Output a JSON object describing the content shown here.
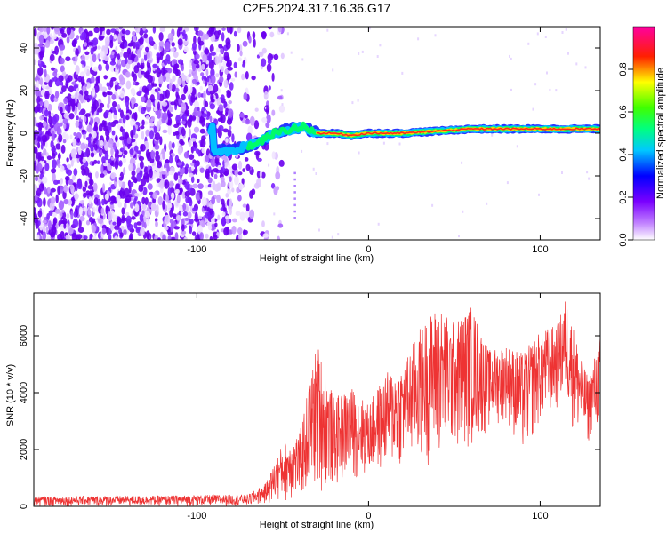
{
  "chart_data": [
    {
      "type": "heatmap",
      "title": "C2E5.2024.317.16.36.G17",
      "xlabel": "Height of straight line (km)",
      "ylabel": "Frequency (Hz)",
      "xlim": [
        -195,
        135
      ],
      "ylim": [
        -50,
        50
      ],
      "xticks": [
        -100,
        0,
        100
      ],
      "yticks": [
        -40,
        -20,
        0,
        20,
        40
      ],
      "colorbar": {
        "label": "Normalized spectral amplitude",
        "range": [
          0,
          1
        ],
        "ticks": [
          0.0,
          0.2,
          0.4,
          0.6,
          0.8
        ],
        "colormap": [
          "#ffffff",
          "#7a00ff",
          "#0000ff",
          "#00ffff",
          "#00ff00",
          "#ffff00",
          "#ff0000",
          "#ff00a0"
        ]
      },
      "features": {
        "noise_region_x": [
          -195,
          -60
        ],
        "signal_line": [
          {
            "x": -90,
            "y": -8
          },
          {
            "x": -80,
            "y": -8
          },
          {
            "x": -65,
            "y": -5
          },
          {
            "x": -55,
            "y": 0
          },
          {
            "x": -45,
            "y": 2
          },
          {
            "x": -38,
            "y": 3
          },
          {
            "x": -30,
            "y": 0
          },
          {
            "x": -20,
            "y": 0
          },
          {
            "x": -10,
            "y": -1
          },
          {
            "x": 0,
            "y": 0
          },
          {
            "x": 20,
            "y": 0
          },
          {
            "x": 40,
            "y": 1
          },
          {
            "x": 60,
            "y": 2
          },
          {
            "x": 80,
            "y": 2
          },
          {
            "x": 100,
            "y": 2
          },
          {
            "x": 120,
            "y": 2
          },
          {
            "x": 135,
            "y": 2
          }
        ],
        "spike_x": -43
      }
    },
    {
      "type": "line",
      "xlabel": "Height of straight line (km)",
      "ylabel": "SNR (10 * v/v)",
      "xlim": [
        -195,
        135
      ],
      "ylim": [
        0,
        7500
      ],
      "xticks": [
        -100,
        0,
        100
      ],
      "yticks": [
        0,
        2000,
        4000,
        6000
      ],
      "color": "#ee3333",
      "envelope": [
        {
          "x": -195,
          "lo": 0,
          "hi": 350
        },
        {
          "x": -120,
          "lo": 0,
          "hi": 380
        },
        {
          "x": -70,
          "lo": 0,
          "hi": 420
        },
        {
          "x": -60,
          "lo": 50,
          "hi": 800
        },
        {
          "x": -50,
          "lo": 100,
          "hi": 2200
        },
        {
          "x": -40,
          "lo": 200,
          "hi": 2600
        },
        {
          "x": -30,
          "lo": 400,
          "hi": 5800
        },
        {
          "x": -20,
          "lo": 600,
          "hi": 3800
        },
        {
          "x": -10,
          "lo": 900,
          "hi": 4200
        },
        {
          "x": 0,
          "lo": 1000,
          "hi": 3600
        },
        {
          "x": 10,
          "lo": 1200,
          "hi": 4700
        },
        {
          "x": 20,
          "lo": 1300,
          "hi": 5000
        },
        {
          "x": 30,
          "lo": 1400,
          "hi": 6300
        },
        {
          "x": 40,
          "lo": 1500,
          "hi": 7100
        },
        {
          "x": 50,
          "lo": 1700,
          "hi": 6500
        },
        {
          "x": 60,
          "lo": 2000,
          "hi": 7100
        },
        {
          "x": 70,
          "lo": 2600,
          "hi": 5500
        },
        {
          "x": 80,
          "lo": 3000,
          "hi": 5700
        },
        {
          "x": 90,
          "lo": 1600,
          "hi": 5400
        },
        {
          "x": 100,
          "lo": 2800,
          "hi": 6200
        },
        {
          "x": 110,
          "lo": 3300,
          "hi": 6400
        },
        {
          "x": 115,
          "lo": 3500,
          "hi": 7400
        },
        {
          "x": 120,
          "lo": 2400,
          "hi": 6200
        },
        {
          "x": 128,
          "lo": 2100,
          "hi": 4500
        },
        {
          "x": 135,
          "lo": 2700,
          "hi": 6000
        }
      ]
    }
  ]
}
